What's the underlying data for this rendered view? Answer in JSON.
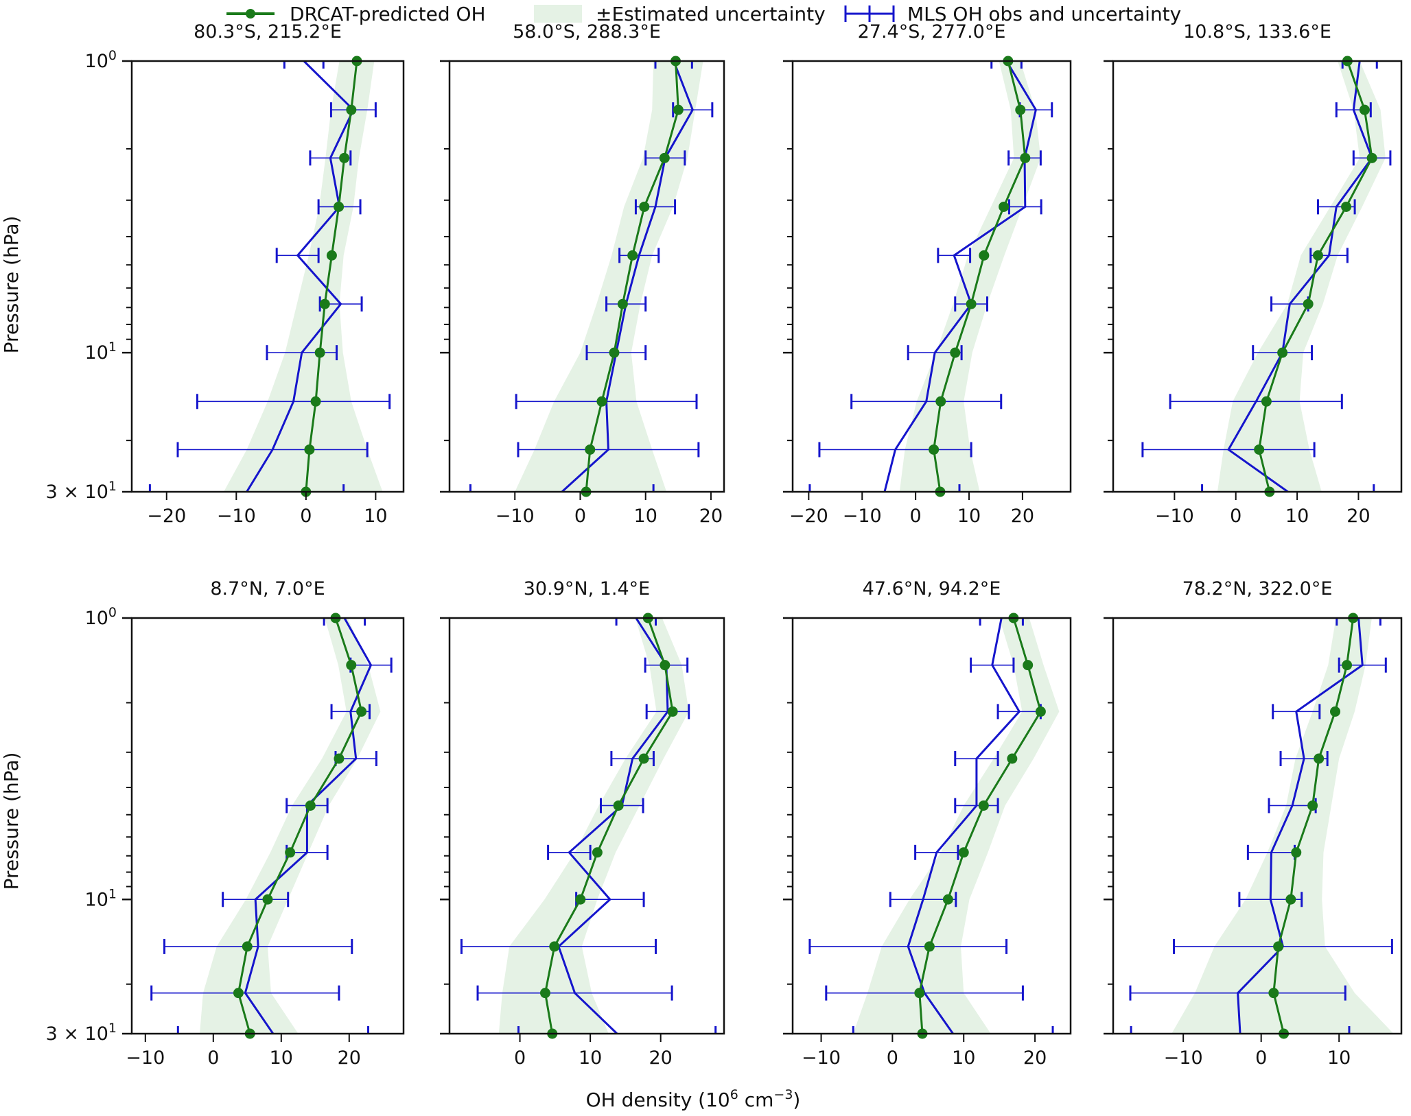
{
  "figure": {
    "legend": {
      "items": [
        {
          "label": "DRCAT-predicted OH",
          "symbol": "green-line-circle-marker-icon"
        },
        {
          "label": "±Estimated uncertainty",
          "symbol": "green-shaded-band-icon"
        },
        {
          "label": "MLS OH obs and uncertainty",
          "symbol": "blue-line-errorbar-icon"
        }
      ],
      "placement": "top-center"
    },
    "y_axis_label": "Pressure (hPa)",
    "x_axis_label_parts": {
      "base": "OH density (10",
      "exp1": "6",
      "mid": " cm",
      "exp2": "−3",
      "end": ")"
    },
    "y_ticks": [
      {
        "value": 1,
        "base": "10",
        "exp": "0"
      },
      {
        "value": 10,
        "base": "10",
        "exp": "1"
      },
      {
        "value": 30,
        "base": "3 × 10",
        "exp": "1"
      }
    ],
    "colors": {
      "predicted": "#1a7a1a",
      "band": "#e5f2e5",
      "mls": "#1515cc",
      "axis": "#111111"
    }
  },
  "chart_data": [
    {
      "type": "line",
      "title": "80.3°S, 215.2°E",
      "yscale": "log",
      "pressure": [
        1.0,
        1.47,
        2.15,
        3.16,
        4.64,
        6.81,
        10.0,
        14.7,
        21.5,
        30.0
      ],
      "predicted": [
        7.3,
        6.5,
        5.5,
        4.7,
        3.7,
        2.7,
        2.0,
        1.4,
        0.5,
        0.0
      ],
      "band_lower": [
        4.8,
        3.6,
        2.8,
        1.9,
        0.4,
        -1.3,
        -3.0,
        -5.5,
        -8.5,
        -11.8
      ],
      "band_upper": [
        9.8,
        8.8,
        7.6,
        6.8,
        5.4,
        4.8,
        5.3,
        6.5,
        8.8,
        11.0
      ],
      "mls": [
        -0.3,
        6.8,
        3.5,
        4.8,
        -1.2,
        5.0,
        -0.6,
        -1.8,
        -4.8,
        -8.5
      ],
      "mls_err": [
        2.8,
        3.2,
        2.9,
        3.0,
        3.0,
        3.0,
        5.0,
        13.8,
        13.6,
        13.9
      ],
      "xlim": [
        -25,
        14
      ],
      "xticks": [
        -20,
        -10,
        0,
        10
      ]
    },
    {
      "type": "line",
      "title": "58.0°S, 288.3°E",
      "yscale": "log",
      "pressure": [
        1.0,
        1.47,
        2.15,
        3.16,
        4.64,
        6.81,
        10.0,
        14.7,
        21.5,
        30.0
      ],
      "predicted": [
        14.6,
        15.0,
        12.9,
        9.8,
        8.0,
        6.5,
        5.2,
        3.3,
        1.5,
        0.9
      ],
      "band_lower": [
        11.2,
        11.0,
        9.6,
        6.7,
        4.8,
        2.5,
        0.0,
        -4.0,
        -7.0,
        -10.0
      ],
      "band_upper": [
        18.8,
        17.6,
        16.4,
        14.2,
        11.0,
        9.2,
        7.8,
        8.6,
        11.0,
        13.2
      ],
      "mls": [
        14.3,
        17.2,
        13.0,
        11.5,
        9.0,
        7.0,
        5.5,
        4.0,
        4.3,
        -2.8
      ],
      "mls_err": [
        2.8,
        3.0,
        3.0,
        3.0,
        3.0,
        3.0,
        4.5,
        13.8,
        13.8,
        14.0
      ],
      "xlim": [
        -20,
        22
      ],
      "xticks": [
        -10,
        0,
        10,
        20
      ]
    },
    {
      "type": "line",
      "title": "27.4°S, 277.0°E",
      "yscale": "log",
      "pressure": [
        1.0,
        1.47,
        2.15,
        3.16,
        4.64,
        6.81,
        10.0,
        14.7,
        21.5,
        30.0
      ],
      "predicted": [
        17.3,
        19.6,
        20.5,
        16.5,
        12.8,
        10.4,
        7.4,
        4.7,
        3.4,
        4.6
      ],
      "band_lower": [
        15.6,
        17.8,
        18.4,
        14.1,
        9.8,
        7.0,
        3.8,
        0.2,
        -2.0,
        -3.0
      ],
      "band_upper": [
        19.6,
        22.4,
        23.4,
        20.0,
        16.6,
        13.4,
        10.6,
        9.0,
        10.2,
        12.0
      ],
      "mls": [
        17.0,
        22.5,
        20.4,
        20.5,
        7.2,
        10.4,
        3.6,
        2.0,
        -3.8,
        -5.8
      ],
      "mls_err": [
        2.8,
        3.0,
        3.0,
        3.0,
        3.0,
        3.0,
        5.0,
        14.0,
        14.2,
        14.0
      ],
      "xlim": [
        -23,
        29
      ],
      "xticks": [
        -20,
        -10,
        0,
        10,
        20
      ]
    },
    {
      "type": "line",
      "title": "10.8°S, 133.6°E",
      "yscale": "log",
      "pressure": [
        1.0,
        1.47,
        2.15,
        3.16,
        4.64,
        6.81,
        10.0,
        14.7,
        21.5,
        30.0
      ],
      "predicted": [
        18.2,
        21.0,
        22.2,
        18.0,
        13.4,
        11.8,
        7.6,
        5.0,
        3.8,
        5.5
      ],
      "band_lower": [
        16.6,
        19.2,
        20.2,
        15.4,
        10.6,
        8.4,
        3.6,
        -0.5,
        -2.0,
        -3.0
      ],
      "band_upper": [
        20.2,
        23.6,
        24.4,
        20.6,
        16.6,
        14.2,
        11.0,
        10.4,
        12.0,
        14.0
      ],
      "mls": [
        20.2,
        19.2,
        22.2,
        16.4,
        15.2,
        8.8,
        7.6,
        3.3,
        -1.2,
        8.5
      ],
      "mls_err": [
        2.8,
        2.8,
        3.0,
        3.0,
        3.0,
        3.0,
        4.8,
        14.0,
        14.0,
        14.0
      ],
      "xlim": [
        -20,
        27
      ],
      "xticks": [
        -10,
        0,
        10,
        20
      ]
    },
    {
      "type": "line",
      "title": "8.7°N, 7.0°E",
      "yscale": "log",
      "pressure": [
        1.0,
        1.47,
        2.15,
        3.16,
        4.64,
        6.81,
        10.0,
        14.7,
        21.5,
        30.0
      ],
      "predicted": [
        18.0,
        20.3,
        21.8,
        18.5,
        14.3,
        11.3,
        8.0,
        5.0,
        3.7,
        5.4
      ],
      "band_lower": [
        16.4,
        18.4,
        19.6,
        16.0,
        11.6,
        8.4,
        4.8,
        0.5,
        -1.5,
        -2.0
      ],
      "band_upper": [
        19.8,
        22.8,
        24.6,
        21.2,
        17.0,
        14.0,
        11.0,
        8.0,
        8.5,
        12.5
      ],
      "mls": [
        19.3,
        23.2,
        20.2,
        21.0,
        13.8,
        13.8,
        6.2,
        6.6,
        4.7,
        8.8
      ],
      "mls_err": [
        3.0,
        3.0,
        2.8,
        3.0,
        3.0,
        3.0,
        4.8,
        13.8,
        13.8,
        14.0
      ],
      "xlim": [
        -12,
        28
      ],
      "xticks": [
        -10,
        0,
        10,
        20
      ]
    },
    {
      "type": "line",
      "title": "30.9°N, 1.4°E",
      "yscale": "log",
      "pressure": [
        1.0,
        1.47,
        2.15,
        3.16,
        4.64,
        6.81,
        10.0,
        14.7,
        21.5,
        30.0
      ],
      "predicted": [
        18.2,
        20.6,
        21.7,
        17.6,
        14.0,
        11.0,
        8.6,
        4.9,
        3.6,
        4.6
      ],
      "band_lower": [
        16.4,
        18.4,
        19.4,
        15.0,
        11.2,
        7.8,
        3.5,
        -1.5,
        -2.5,
        -3.0
      ],
      "band_upper": [
        20.2,
        23.0,
        24.0,
        20.4,
        17.0,
        13.6,
        11.0,
        8.8,
        10.2,
        12.6
      ],
      "mls": [
        16.5,
        20.8,
        21.0,
        16.0,
        14.5,
        7.0,
        12.8,
        5.5,
        7.8,
        13.8
      ],
      "mls_err": [
        2.8,
        3.0,
        3.0,
        3.0,
        3.0,
        3.0,
        4.8,
        13.8,
        13.8,
        14.0
      ],
      "xlim": [
        -10,
        29
      ],
      "xticks": [
        0,
        10,
        20
      ]
    },
    {
      "type": "line",
      "title": "47.6°N, 94.2°E",
      "yscale": "log",
      "pressure": [
        1.0,
        1.47,
        2.15,
        3.16,
        4.64,
        6.81,
        10.0,
        14.7,
        21.5,
        30.0
      ],
      "predicted": [
        17.0,
        19.0,
        20.8,
        16.8,
        12.8,
        10.0,
        7.8,
        5.2,
        3.8,
        4.2
      ],
      "band_lower": [
        15.0,
        17.0,
        18.2,
        14.2,
        10.0,
        6.8,
        2.4,
        -1.5,
        -3.5,
        -5.5
      ],
      "band_upper": [
        19.2,
        21.2,
        23.4,
        19.8,
        15.8,
        13.4,
        10.8,
        9.6,
        10.0,
        13.8
      ],
      "mls": [
        15.3,
        14.0,
        17.8,
        11.8,
        11.8,
        6.2,
        4.3,
        2.2,
        4.5,
        8.5
      ],
      "mls_err": [
        3.0,
        3.0,
        3.0,
        3.0,
        3.0,
        3.0,
        4.6,
        13.8,
        13.8,
        14.0
      ],
      "xlim": [
        -14,
        25
      ],
      "xticks": [
        -10,
        0,
        10,
        20
      ]
    },
    {
      "type": "line",
      "title": "78.2°N, 322.0°E",
      "yscale": "log",
      "pressure": [
        1.0,
        1.47,
        2.15,
        3.16,
        4.64,
        6.81,
        10.0,
        14.7,
        21.5,
        30.0
      ],
      "predicted": [
        11.8,
        11.0,
        9.5,
        7.4,
        6.6,
        4.5,
        3.8,
        2.2,
        1.6,
        2.9
      ],
      "band_lower": [
        9.6,
        8.6,
        6.6,
        4.4,
        3.2,
        0.8,
        -2.0,
        -6.0,
        -8.5,
        -11.5
      ],
      "band_upper": [
        14.2,
        13.4,
        12.0,
        10.0,
        9.0,
        8.0,
        7.8,
        8.2,
        12.0,
        17.0
      ],
      "mls": [
        12.5,
        13.0,
        4.5,
        5.5,
        4.0,
        1.3,
        1.2,
        2.8,
        -3.0,
        -2.7
      ],
      "mls_err": [
        2.8,
        3.0,
        3.0,
        3.0,
        3.0,
        3.0,
        4.0,
        14.0,
        13.8,
        14.0
      ],
      "xlim": [
        -19,
        18
      ],
      "xticks": [
        -10,
        0,
        10
      ]
    }
  ]
}
